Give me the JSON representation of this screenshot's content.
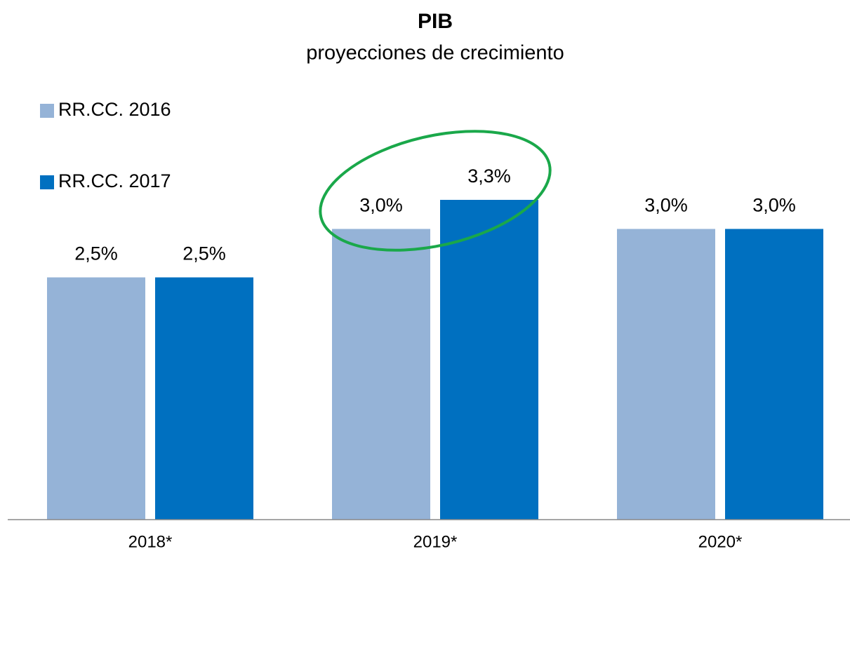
{
  "chart_data": {
    "type": "bar",
    "title": "PIB",
    "subtitle": "proyecciones de crecimiento",
    "categories": [
      "2018*",
      "2019*",
      "2020*"
    ],
    "series": [
      {
        "name": "RR.CC. 2016",
        "color": "#95b3d7",
        "values": [
          2.5,
          3.0,
          3.0
        ],
        "value_labels": [
          "2,5%",
          "3,0%",
          "3,0%"
        ]
      },
      {
        "name": "RR.CC. 2017",
        "color": "#0070c0",
        "values": [
          2.5,
          3.3,
          3.0
        ],
        "value_labels": [
          "2,5%",
          "3,3%",
          "3,0%"
        ]
      }
    ],
    "ylim": [
      0,
      3.3
    ],
    "legend": "top-left",
    "grid": false
  }
}
